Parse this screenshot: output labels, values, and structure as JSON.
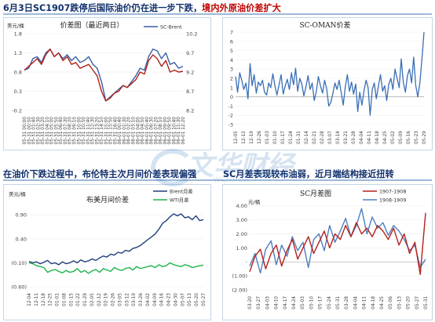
{
  "headline_top": {
    "part1": "6月3日SC1907跌停后国际油价仍在进一步下跌，",
    "part2": "境内外原油价差扩大"
  },
  "headline_mid_left": "在油价下跌过程中，布伦特主次月间价差表现偏强",
  "headline_mid_right": "SC月差表现较布油弱，近月端结构接近扭转",
  "watermark": {
    "main": "文华财经",
    "sub": "WENHUA"
  },
  "chart_data": [
    {
      "id": "spread",
      "type": "line",
      "title": "价差图（最近两日）",
      "unit_label": "美元/桶",
      "yleft_ticks": [
        "1.8",
        "1.3",
        "0.8",
        "0.3",
        "-0.2"
      ],
      "yright_ticks": [
        "10.2",
        "9.7",
        "9.2",
        "8.7",
        "8.2"
      ],
      "ylim_left": [
        -0.2,
        1.8
      ],
      "ylim_right": [
        8.2,
        10.2
      ],
      "x_ticks": [
        "05-31 00:00",
        "05-31 00:50",
        "05-31 01:40",
        "05-31 02:30",
        "05-31 03:20",
        "05-31 04:10",
        "05-31 05:00",
        "05-31 05:50",
        "05-31 06:40",
        "05-31 07:30",
        "05-31 08:20",
        "05-31 09:10",
        "05-31 10:00",
        "05-31 10:50",
        "05-31 11:40",
        "05-31 12:30",
        "05-31 13:20",
        "05-31 14:10",
        "05-31 15:00",
        "05-31 15:50",
        "05-31 16:40",
        "06-01 00:40",
        "06-01 01:30",
        "06-01 02:20",
        "06-01 03:10",
        "06-01 04:00",
        "06-01 04:50",
        "06-01 05:40",
        "06-01 06:30",
        "06-01 07:20",
        "06-01 08:10",
        "06-01 09:00",
        "06-01 09:50",
        "06-01 10:40",
        "06-01 11:30",
        "06-01 12:20"
      ],
      "series": [
        {
          "name": "SC-Brent",
          "axis": "right",
          "color": "#3a5fa8",
          "values": [
            9.25,
            9.3,
            9.55,
            9.6,
            9.45,
            9.7,
            9.8,
            9.6,
            9.7,
            9.55,
            9.65,
            9.5,
            9.6,
            9.45,
            9.5,
            9.6,
            9.4,
            9.3,
            8.95,
            8.45,
            8.55,
            8.65,
            8.75,
            8.85,
            8.8,
            8.95,
            9.1,
            9.3,
            9.25,
            9.6,
            9.8,
            9.75,
            9.55,
            9.7,
            9.4,
            9.45,
            9.3,
            9.35
          ]
        },
        {
          "name": "",
          "axis": "left",
          "color": "#b02218",
          "values": [
            0.85,
            0.95,
            1.05,
            1.15,
            1.0,
            1.25,
            1.4,
            1.2,
            1.3,
            1.1,
            1.2,
            1.0,
            1.05,
            0.9,
            0.95,
            1.0,
            0.85,
            0.7,
            0.3,
            0.05,
            0.12,
            0.25,
            0.3,
            0.45,
            0.4,
            0.5,
            0.6,
            0.8,
            0.75,
            1.1,
            1.25,
            1.15,
            0.95,
            1.1,
            0.8,
            0.85,
            0.8,
            0.82
          ]
        }
      ]
    },
    {
      "id": "scoman",
      "type": "line",
      "title": "SC-OMAN价差",
      "unit_label": "",
      "y_ticks": [
        "7",
        "6",
        "5",
        "4",
        "3",
        "2",
        "1",
        "0",
        "-1",
        "-2",
        "-3"
      ],
      "ylim": [
        -3,
        7
      ],
      "x_ticks": [
        "12-05",
        "12-12",
        "12-19",
        "12-26",
        "01-03",
        "01-10",
        "01-17",
        "01-24",
        "01-31",
        "02-14",
        "02-21",
        "02-28",
        "03-07",
        "03-14",
        "03-21",
        "03-28",
        "04-04",
        "04-11",
        "04-18",
        "04-25",
        "05-02",
        "05-09",
        "05-16",
        "05-23",
        "05-29"
      ],
      "series": [
        {
          "name": "",
          "color": "#3a6fb5",
          "values": [
            2.2,
            0.5,
            2.6,
            1.8,
            0.8,
            1.5,
            -0.2,
            3.6,
            1.2,
            2.4,
            0.4,
            1.6,
            1.2,
            1.8,
            0.5,
            0.2,
            1.5,
            1.0,
            2.5,
            1.2,
            0.2,
            1.3,
            2.4,
            0.3,
            1.2,
            1.9,
            0.8,
            2.6,
            1.3,
            3.1,
            0.6,
            2.0,
            1.4,
            0.1,
            1.1,
            2.3,
            0.8,
            1.5,
            -0.4,
            0.6,
            2.2,
            1.2,
            0.4,
            1.8,
            0.9,
            -1.0,
            -0.6,
            0.4,
            1.5,
            0.8,
            1.8,
            0.5,
            -0.9,
            1.1,
            2.4,
            0.6,
            1.6,
            0.3,
            1.4,
            -1.6,
            0.5,
            -0.9,
            0.6,
            1.8,
            1.0,
            -2.0,
            0.8,
            1.5,
            -0.2,
            1.2,
            2.4,
            0.6,
            1.2,
            -0.4,
            1.4,
            2.0,
            0.8,
            3.0,
            2.0,
            1.0,
            4.1,
            1.6,
            0.5,
            2.3,
            3.0,
            1.5,
            4.3,
            1.2,
            0.0,
            1.5,
            4.1,
            7.0
          ]
        }
      ]
    },
    {
      "id": "brent_wti",
      "type": "line",
      "title": "布美月间价差",
      "unit_label": "美元/桶",
      "y_ticks": [
        "0.90",
        "0.40",
        "(0.10)",
        "(0.60)"
      ],
      "ylim": [
        -0.6,
        1.1
      ],
      "x_ticks": [
        "12-04",
        "12-11",
        "12-18",
        "12-25",
        "01-01",
        "01-08",
        "01-15",
        "01-22",
        "01-29",
        "02-05",
        "02-12",
        "02-19",
        "02-26",
        "03-05",
        "03-12",
        "03-19",
        "03-26",
        "04-02",
        "04-09",
        "04-16",
        "04-23",
        "04-30",
        "05-07",
        "05-13",
        "05-20",
        "05-27"
      ],
      "series": [
        {
          "name": "Brent月差",
          "color": "#1f3e7c",
          "values": [
            -0.07,
            -0.1,
            -0.08,
            -0.12,
            -0.09,
            -0.05,
            -0.12,
            -0.1,
            -0.14,
            -0.08,
            -0.12,
            -0.1,
            -0.06,
            -0.1,
            -0.04,
            -0.08,
            -0.06,
            -0.02,
            -0.05,
            0.0,
            0.04,
            0.02,
            0.08,
            0.06,
            0.12,
            0.1,
            0.16,
            0.14,
            0.2,
            0.22,
            0.26,
            0.32,
            0.38,
            0.44,
            0.5,
            0.6,
            0.72,
            0.78,
            0.86,
            0.92,
            0.88,
            0.92,
            0.84,
            0.86,
            0.8,
            0.88,
            0.78,
            0.8
          ]
        },
        {
          "name": "WTI月差",
          "color": "#1eb34a",
          "values": [
            -0.1,
            -0.12,
            -0.16,
            -0.18,
            -0.2,
            -0.3,
            -0.26,
            -0.24,
            -0.28,
            -0.31,
            -0.26,
            -0.3,
            -0.28,
            -0.22,
            -0.3,
            -0.26,
            -0.32,
            -0.27,
            -0.24,
            -0.3,
            -0.22,
            -0.25,
            -0.28,
            -0.2,
            -0.24,
            -0.26,
            -0.22,
            -0.2,
            -0.25,
            -0.18,
            -0.22,
            -0.2,
            -0.18,
            -0.16,
            -0.2,
            -0.14,
            -0.18,
            -0.16,
            -0.1,
            -0.14,
            -0.16,
            -0.18,
            -0.14,
            -0.16,
            -0.2,
            -0.18,
            -0.16,
            -0.15
          ]
        }
      ]
    },
    {
      "id": "sc_monthly",
      "type": "line",
      "title": "SC月差图",
      "unit_label": "元/桶",
      "y_ticks": [
        "4.00",
        "3.00",
        "2.00",
        "1.00",
        "-",
        "(1.00)",
        "(2.00)"
      ],
      "ylim": [
        -2,
        4.6
      ],
      "x_ticks": [
        "03-20",
        "03-27",
        "04-03",
        "04-10",
        "04-17",
        "04-24",
        "05-03",
        "05-10",
        "05-17",
        "05-24",
        "05-31",
        "03-28",
        "04-04",
        "04-11",
        "04-18",
        "04-25",
        "05-06",
        "05-13",
        "05-20",
        "05-27",
        "05-31"
      ],
      "series": [
        {
          "name": "1907-1908",
          "color": "#b5201c",
          "values": [
            -0.7,
            0.4,
            0.9,
            -0.5,
            0.6,
            1.2,
            -0.3,
            0.8,
            1.6,
            0.2,
            1.0,
            1.8,
            0.6,
            1.4,
            2.2,
            1.0,
            2.0,
            1.6,
            2.6,
            1.8,
            2.8,
            2.0,
            2.4,
            1.8,
            2.6,
            2.2,
            1.6,
            2.4,
            1.2,
            2.0,
            0.6,
            1.4,
            -0.9,
            3.5
          ]
        },
        {
          "name": "1908-1909",
          "color": "#4d7fc0",
          "values": [
            -0.3,
            0.6,
            -0.8,
            0.9,
            1.5,
            -0.2,
            1.2,
            0.4,
            1.8,
            0.8,
            1.4,
            -0.4,
            1.6,
            2.0,
            0.8,
            2.6,
            1.4,
            2.2,
            3.1,
            1.8,
            2.6,
            3.8,
            2.0,
            3.2,
            2.4,
            2.8,
            1.9,
            2.6,
            2.2,
            1.6,
            0.8,
            1.2,
            -0.4,
            0.2
          ]
        }
      ]
    }
  ]
}
